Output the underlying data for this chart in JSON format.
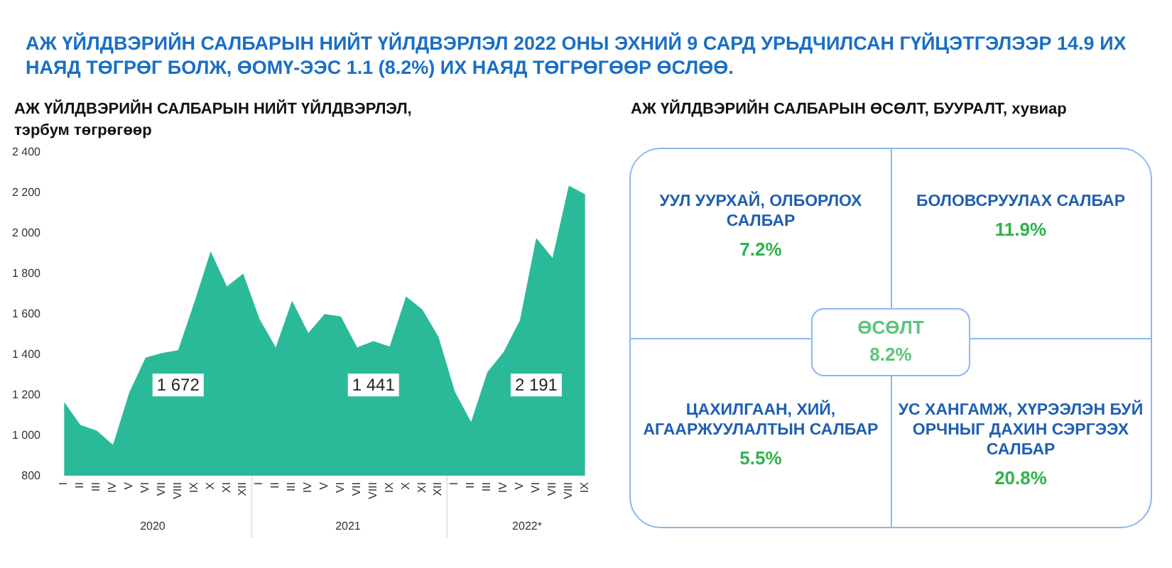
{
  "chart_data": [
    {
      "type": "area",
      "title": "АЖ ҮЙЛДВЭРИЙН САЛБАРЫН НИЙТ ҮЙЛДВЭРЛЭЛ 2022 ОНЫ ЭХНИЙ 9 САРД УРЬДЧИЛСАН ГҮЙЦЭТГЭЛЭЭР 14.9 ИХ НАЯД ТӨГРӨГ БОЛЖ, ӨОМҮ-ЭЭС 1.1 (8.2%) ИХ НАЯД ТӨГРӨГӨӨР ӨСЛӨӨ.",
      "subtitle": "АЖ ҮЙЛДВЭРИЙН САЛБАРЫН НИЙТ ҮЙЛДВЭРЛЭЛ, тэрбум төгрөгөөр",
      "categories": [
        "I",
        "II",
        "III",
        "IV",
        "V",
        "VI",
        "VII",
        "VIII",
        "IX",
        "X",
        "XI",
        "XII",
        "I",
        "II",
        "III",
        "IV",
        "V",
        "VI",
        "VII",
        "VIII",
        "IX",
        "X",
        "XI",
        "XII",
        "I",
        "II",
        "III",
        "IV",
        "V",
        "VI",
        "VII",
        "VIII",
        "IX"
      ],
      "series": [
        {
          "color": "#2bba99",
          "values": [
            1164,
            1051,
            1023,
            953,
            1211,
            1383,
            1406,
            1420,
            1658,
            1909,
            1735,
            1799,
            1575,
            1434,
            1665,
            1505,
            1599,
            1587,
            1434,
            1465,
            1439,
            1686,
            1622,
            1486,
            1216,
            1066,
            1312,
            1411,
            1568,
            1975,
            1876,
            2233,
            2191
          ]
        }
      ],
      "ylim": [
        800,
        2400
      ],
      "yticks": [
        800,
        {
          "value": 1000,
          "label": "1 000"
        },
        {
          "value": 1200,
          "label": "1 200"
        },
        {
          "value": 1400,
          "label": "1 400"
        },
        {
          "value": 1600,
          "label": "1 600"
        },
        {
          "value": 1800,
          "label": "1 800"
        },
        {
          "value": 2000,
          "label": "2 000"
        },
        {
          "value": 2200,
          "label": "2 200"
        },
        {
          "value": 2400,
          "label": "2 400"
        }
      ],
      "annotations": [
        "1 672",
        "1 441",
        "2 191",
        "2020",
        "2021",
        "2022*"
      ]
    },
    {
      "type": "other",
      "title": "АЖ ҮЙЛДВЭРИЙН САЛБАРЫН ӨСӨЛТ, БУУРАЛТ, хувиар",
      "annotations": [
        "УУЛ УУРХАЙ, ОЛБОРЛОХ САЛБАР",
        "7.2%",
        "БОЛОВСРУУЛАХ САЛБАР",
        "11.9%",
        "ЦАХИЛГААН, ХИЙ, АГААРЖУУЛАЛТЫН САЛБАР",
        "5.5%",
        "УС ХАНГАМЖ, ХҮРЭЭЛЭН БУЙ ОРЧНЫГ ДАХИН СЭРГЭЭХ САЛБАР",
        "20.8%",
        "ӨСӨЛТ",
        "8.2%"
      ]
    }
  ]
}
